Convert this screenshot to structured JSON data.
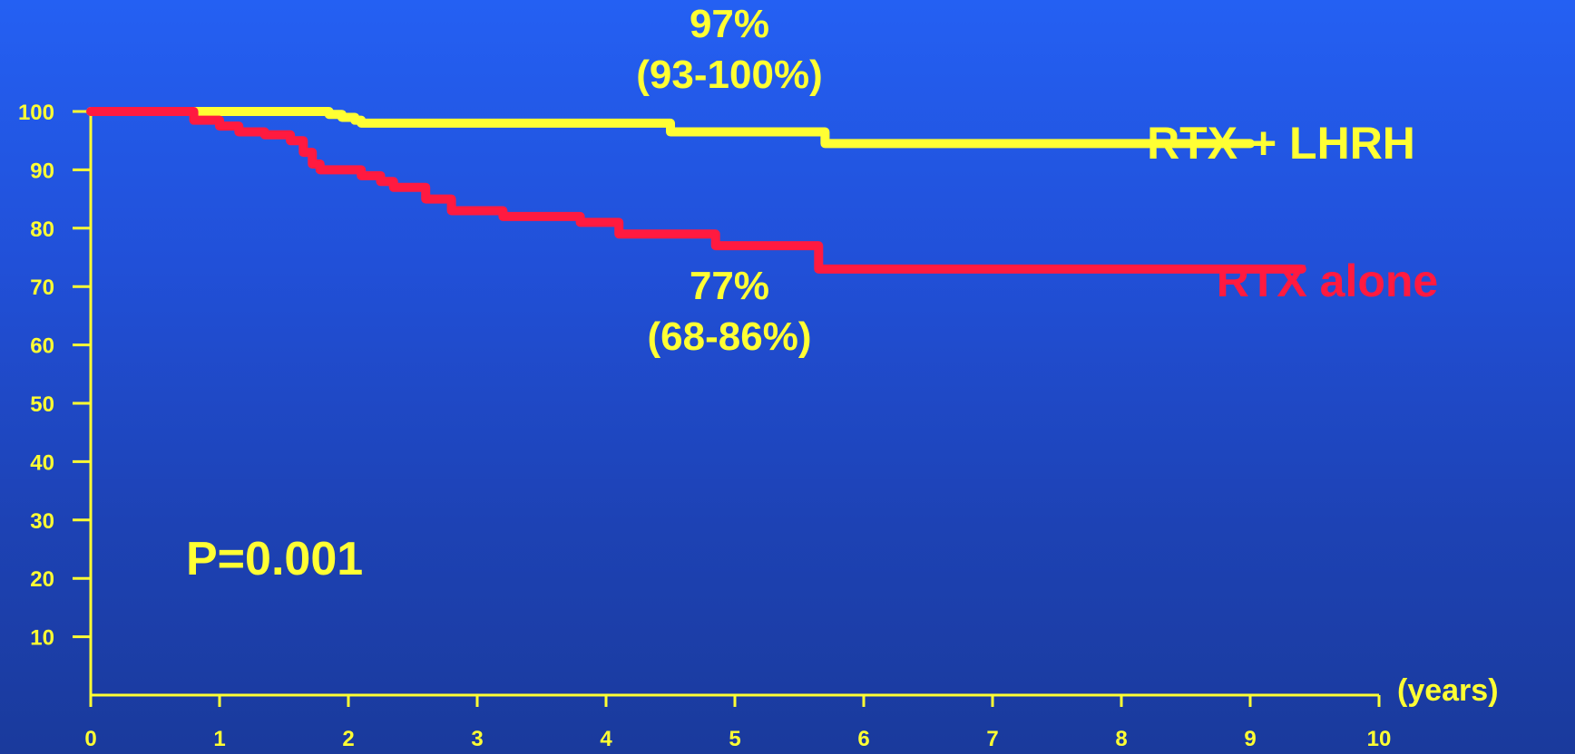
{
  "chart_data": {
    "type": "line",
    "step": true,
    "title": "",
    "xlabel": "(years)",
    "ylabel": "",
    "xlim": [
      0,
      10
    ],
    "ylim": [
      0,
      100
    ],
    "x_ticks": [
      0,
      1,
      2,
      3,
      4,
      5,
      6,
      7,
      8,
      9,
      10
    ],
    "y_ticks": [
      10,
      20,
      30,
      40,
      50,
      60,
      70,
      80,
      90,
      100
    ],
    "grid": false,
    "axis_color": "#ffff33",
    "series": [
      {
        "name": "RTX + LHRH",
        "color": "#ffff33",
        "x": [
          0,
          1.85,
          1.95,
          2.05,
          2.1,
          4.5,
          5.7,
          9.0
        ],
        "y": [
          100,
          99.5,
          99,
          98.5,
          98,
          96.5,
          94.5,
          94.5
        ]
      },
      {
        "name": "RTX alone",
        "color": "#ff1a40",
        "x": [
          0,
          0.8,
          1.0,
          1.15,
          1.35,
          1.55,
          1.65,
          1.72,
          1.78,
          2.1,
          2.25,
          2.35,
          2.6,
          2.8,
          3.2,
          3.8,
          4.1,
          4.85,
          5.65,
          9.4
        ],
        "y": [
          100,
          98.5,
          97.5,
          96.5,
          96,
          95,
          93,
          91,
          90,
          89,
          88,
          87,
          85,
          83,
          82,
          81,
          79,
          77,
          73,
          73
        ]
      }
    ],
    "annotations": [
      {
        "id": "ann1",
        "lines": [
          "97%",
          "(93-100%)"
        ]
      },
      {
        "id": "ann2",
        "lines": [
          "77%",
          "(68-86%)"
        ]
      },
      {
        "id": "ann3",
        "lines": [
          "P=0.001"
        ]
      }
    ]
  }
}
